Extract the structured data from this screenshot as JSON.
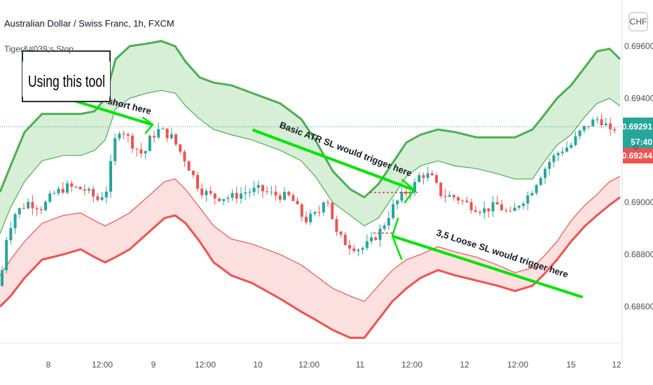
{
  "header": {
    "title": "Australian Dollar / Swiss Franc, 1h, FXCM",
    "indicator": "Tiger&#039;s Stop",
    "currency": "CHF"
  },
  "annotations": {
    "tool_box": "Using this tool",
    "faint_text": "I'd went short here",
    "short_text": "short here",
    "basic_text": "Basic ATR SL would trigger here",
    "loose_text": "3,5 Loose SL would trigger here"
  },
  "price_tags": {
    "current": "0.69291",
    "countdown": "57:40",
    "stop": "0.69244",
    "hidden": "0"
  },
  "colors": {
    "up": "#26a69a",
    "down": "#ef5350",
    "upper_band_line": "#4caf50",
    "upper_band_fill": "#d7efd7",
    "lower_band_line": "#ef5350",
    "lower_band_fill": "#fde0e0",
    "arrow": "#00e600",
    "current_tag": "#26a69a",
    "stop_tag": "#ef5350"
  },
  "chart_data": {
    "type": "candlestick",
    "title": "Australian Dollar / Swiss Franc, 1h, FXCM",
    "y_ticks": [
      "0.69600",
      "0.69400",
      "0.69200",
      "0.69000",
      "0.68800",
      "0.68600"
    ],
    "x_ticks": [
      "8",
      "12:00",
      "9",
      "12:00",
      "10",
      "12:00",
      "11",
      "12:00",
      "12",
      "12:00",
      "15",
      "12"
    ],
    "ylim": [
      0.6845,
      0.6972
    ],
    "current_price": 0.69291,
    "stop_price": 0.69244,
    "close_path": [
      [
        0,
        0.6868
      ],
      [
        10,
        0.6888
      ],
      [
        22,
        0.6896
      ],
      [
        40,
        0.69
      ],
      [
        60,
        0.6898
      ],
      [
        75,
        0.6903
      ],
      [
        95,
        0.6906
      ],
      [
        120,
        0.6905
      ],
      [
        140,
        0.6901
      ],
      [
        152,
        0.6905
      ],
      [
        165,
        0.6925
      ],
      [
        172,
        0.6929
      ],
      [
        190,
        0.6922
      ],
      [
        205,
        0.6918
      ],
      [
        215,
        0.6925
      ],
      [
        228,
        0.6928
      ],
      [
        245,
        0.6925
      ],
      [
        265,
        0.6916
      ],
      [
        285,
        0.6905
      ],
      [
        305,
        0.6902
      ],
      [
        330,
        0.6902
      ],
      [
        350,
        0.6904
      ],
      [
        370,
        0.6905
      ],
      [
        390,
        0.6903
      ],
      [
        415,
        0.6902
      ],
      [
        435,
        0.6893
      ],
      [
        455,
        0.6896
      ],
      [
        465,
        0.6904
      ],
      [
        480,
        0.6888
      ],
      [
        495,
        0.6884
      ],
      [
        515,
        0.6882
      ],
      [
        530,
        0.6885
      ],
      [
        545,
        0.689
      ],
      [
        560,
        0.6898
      ],
      [
        575,
        0.6903
      ],
      [
        590,
        0.6906
      ],
      [
        600,
        0.6911
      ],
      [
        615,
        0.691
      ],
      [
        630,
        0.6903
      ],
      [
        650,
        0.6902
      ],
      [
        670,
        0.6899
      ],
      [
        690,
        0.6897
      ],
      [
        710,
        0.6899
      ],
      [
        728,
        0.6895
      ],
      [
        742,
        0.69
      ],
      [
        755,
        0.6903
      ],
      [
        770,
        0.691
      ],
      [
        785,
        0.6916
      ],
      [
        800,
        0.692
      ],
      [
        815,
        0.6922
      ],
      [
        828,
        0.6927
      ],
      [
        840,
        0.693
      ],
      [
        852,
        0.6932
      ],
      [
        862,
        0.6931
      ],
      [
        872,
        0.6926
      ],
      [
        878,
        0.6929
      ]
    ],
    "upper_outer": [
      [
        0,
        0.6904
      ],
      [
        15,
        0.6914
      ],
      [
        35,
        0.6927
      ],
      [
        60,
        0.6934
      ],
      [
        90,
        0.6934
      ],
      [
        115,
        0.6934
      ],
      [
        135,
        0.6935
      ],
      [
        150,
        0.694
      ],
      [
        165,
        0.6955
      ],
      [
        185,
        0.696
      ],
      [
        210,
        0.6961
      ],
      [
        230,
        0.6962
      ],
      [
        250,
        0.696
      ],
      [
        265,
        0.6954
      ],
      [
        285,
        0.6948
      ],
      [
        305,
        0.6946
      ],
      [
        330,
        0.6945
      ],
      [
        360,
        0.6942
      ],
      [
        400,
        0.6938
      ],
      [
        430,
        0.6932
      ],
      [
        450,
        0.6924
      ],
      [
        475,
        0.6912
      ],
      [
        500,
        0.6905
      ],
      [
        520,
        0.6902
      ],
      [
        540,
        0.6907
      ],
      [
        560,
        0.6915
      ],
      [
        580,
        0.6923
      ],
      [
        600,
        0.6926
      ],
      [
        625,
        0.6928
      ],
      [
        650,
        0.6927
      ],
      [
        680,
        0.6925
      ],
      [
        710,
        0.6925
      ],
      [
        735,
        0.6925
      ],
      [
        760,
        0.6928
      ],
      [
        775,
        0.6933
      ],
      [
        795,
        0.694
      ],
      [
        815,
        0.6945
      ],
      [
        835,
        0.6952
      ],
      [
        852,
        0.6958
      ],
      [
        870,
        0.6959
      ],
      [
        885,
        0.6955
      ]
    ],
    "upper_inner": [
      [
        0,
        0.6888
      ],
      [
        15,
        0.6898
      ],
      [
        35,
        0.6908
      ],
      [
        60,
        0.6916
      ],
      [
        90,
        0.6918
      ],
      [
        115,
        0.6918
      ],
      [
        135,
        0.692
      ],
      [
        150,
        0.6924
      ],
      [
        165,
        0.6936
      ],
      [
        185,
        0.694
      ],
      [
        210,
        0.6942
      ],
      [
        230,
        0.6943
      ],
      [
        250,
        0.6942
      ],
      [
        265,
        0.6937
      ],
      [
        285,
        0.6932
      ],
      [
        305,
        0.6928
      ],
      [
        330,
        0.6926
      ],
      [
        360,
        0.6924
      ],
      [
        400,
        0.692
      ],
      [
        430,
        0.6916
      ],
      [
        450,
        0.691
      ],
      [
        475,
        0.69
      ],
      [
        500,
        0.6895
      ],
      [
        520,
        0.6891
      ],
      [
        540,
        0.6894
      ],
      [
        560,
        0.6902
      ],
      [
        580,
        0.691
      ],
      [
        600,
        0.6914
      ],
      [
        625,
        0.6916
      ],
      [
        650,
        0.6914
      ],
      [
        680,
        0.6913
      ],
      [
        710,
        0.6911
      ],
      [
        735,
        0.6909
      ],
      [
        760,
        0.6909
      ],
      [
        775,
        0.6915
      ],
      [
        795,
        0.6922
      ],
      [
        815,
        0.6926
      ],
      [
        835,
        0.6933
      ],
      [
        852,
        0.6938
      ],
      [
        870,
        0.694
      ],
      [
        885,
        0.6937
      ]
    ],
    "lower_inner": [
      [
        0,
        0.6872
      ],
      [
        15,
        0.6878
      ],
      [
        35,
        0.6885
      ],
      [
        60,
        0.6892
      ],
      [
        90,
        0.6895
      ],
      [
        115,
        0.6896
      ],
      [
        135,
        0.6893
      ],
      [
        150,
        0.6891
      ],
      [
        165,
        0.6893
      ],
      [
        185,
        0.6896
      ],
      [
        210,
        0.6902
      ],
      [
        235,
        0.6908
      ],
      [
        250,
        0.6909
      ],
      [
        265,
        0.6905
      ],
      [
        285,
        0.6898
      ],
      [
        305,
        0.6891
      ],
      [
        330,
        0.6886
      ],
      [
        360,
        0.6884
      ],
      [
        400,
        0.688
      ],
      [
        430,
        0.6876
      ],
      [
        450,
        0.6872
      ],
      [
        475,
        0.6867
      ],
      [
        500,
        0.6864
      ],
      [
        520,
        0.6862
      ],
      [
        540,
        0.6868
      ],
      [
        560,
        0.6874
      ],
      [
        580,
        0.6878
      ],
      [
        600,
        0.688
      ],
      [
        625,
        0.6883
      ],
      [
        650,
        0.6881
      ],
      [
        680,
        0.6879
      ],
      [
        710,
        0.6876
      ],
      [
        735,
        0.6873
      ],
      [
        760,
        0.6875
      ],
      [
        775,
        0.6879
      ],
      [
        795,
        0.6885
      ],
      [
        815,
        0.6893
      ],
      [
        835,
        0.6899
      ],
      [
        852,
        0.6903
      ],
      [
        870,
        0.6908
      ],
      [
        885,
        0.691
      ]
    ],
    "lower_outer": [
      [
        0,
        0.686
      ],
      [
        15,
        0.6864
      ],
      [
        35,
        0.6871
      ],
      [
        60,
        0.6878
      ],
      [
        90,
        0.688
      ],
      [
        115,
        0.6882
      ],
      [
        135,
        0.6879
      ],
      [
        150,
        0.6877
      ],
      [
        165,
        0.6879
      ],
      [
        185,
        0.6882
      ],
      [
        210,
        0.6888
      ],
      [
        235,
        0.6894
      ],
      [
        250,
        0.6895
      ],
      [
        265,
        0.6892
      ],
      [
        285,
        0.6885
      ],
      [
        305,
        0.6877
      ],
      [
        330,
        0.6872
      ],
      [
        360,
        0.6869
      ],
      [
        400,
        0.6863
      ],
      [
        430,
        0.6858
      ],
      [
        450,
        0.6855
      ],
      [
        475,
        0.6851
      ],
      [
        500,
        0.6848
      ],
      [
        520,
        0.6848
      ],
      [
        540,
        0.6855
      ],
      [
        560,
        0.6862
      ],
      [
        580,
        0.6867
      ],
      [
        600,
        0.6871
      ],
      [
        625,
        0.6874
      ],
      [
        650,
        0.6872
      ],
      [
        680,
        0.687
      ],
      [
        710,
        0.6868
      ],
      [
        735,
        0.6866
      ],
      [
        760,
        0.6868
      ],
      [
        775,
        0.6872
      ],
      [
        795,
        0.6878
      ],
      [
        815,
        0.6885
      ],
      [
        835,
        0.6891
      ],
      [
        852,
        0.6895
      ],
      [
        870,
        0.6899
      ],
      [
        885,
        0.6902
      ]
    ]
  }
}
